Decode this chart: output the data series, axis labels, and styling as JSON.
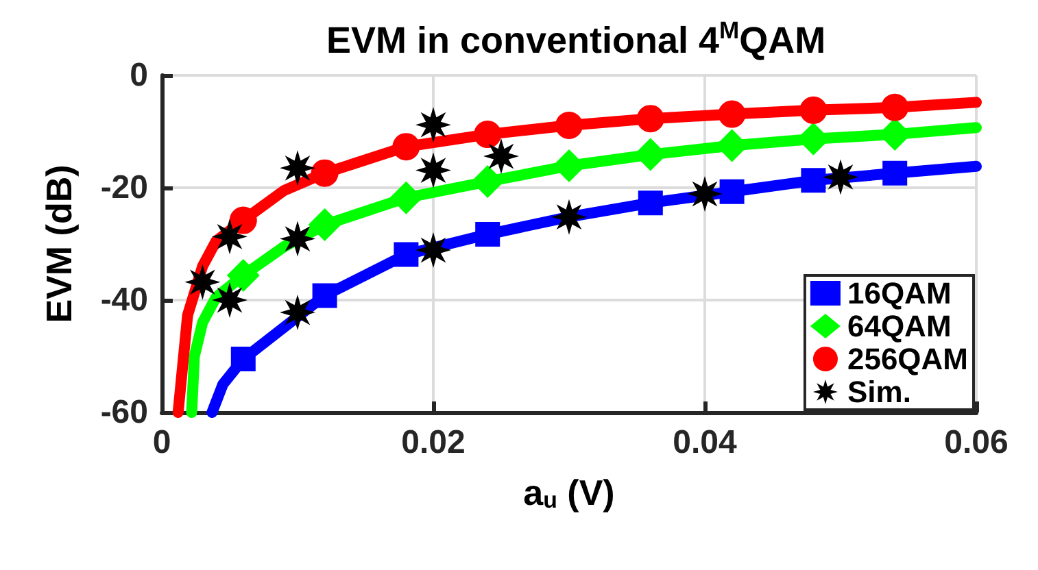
{
  "chart_data": {
    "type": "line",
    "title": "EVM in conventional 4$^{M}$QAM",
    "xlabel": "a$_{u}$ (V)",
    "ylabel": "EVM (dB)",
    "xlim": [
      0,
      0.06
    ],
    "xticks": [
      0,
      0.02,
      0.04,
      0.06
    ],
    "ylim": [
      -60,
      0
    ],
    "yticks": [
      -60,
      -40,
      -20,
      0
    ],
    "grid": true,
    "legend": "bottom right",
    "series": [
      {
        "type": "line",
        "marker": "none",
        "color": "#0000ff",
        "x": [
          0.0037,
          0.0045,
          0.006,
          0.012,
          0.018,
          0.024,
          0.03,
          0.036,
          0.042,
          0.048,
          0.054,
          0.06
        ],
        "values": [
          -60,
          -55,
          -50.5,
          -39.2,
          -31.9,
          -28.3,
          -25.2,
          -22.7,
          -20.7,
          -18.7,
          -17.4,
          -16.2
        ]
      },
      {
        "type": "line",
        "marker": "none",
        "color": "#00ff00",
        "x": [
          0.0022,
          0.0024,
          0.003,
          0.004,
          0.006,
          0.009,
          0.012,
          0.018,
          0.024,
          0.03,
          0.036,
          0.042,
          0.048,
          0.054,
          0.06
        ],
        "values": [
          -60,
          -50,
          -44,
          -39.5,
          -35.6,
          -30.5,
          -26.6,
          -21.8,
          -18.9,
          -16.1,
          -14.1,
          -12.5,
          -11.3,
          -10.5,
          -9.3
        ]
      },
      {
        "type": "line",
        "marker": "none",
        "color": "#ff0000",
        "x": [
          0.0012,
          0.0019,
          0.003,
          0.004,
          0.006,
          0.009,
          0.012,
          0.018,
          0.024,
          0.03,
          0.036,
          0.042,
          0.048,
          0.054,
          0.06
        ],
        "values": [
          -60,
          -42.7,
          -34,
          -29.5,
          -25.8,
          -20.5,
          -17.4,
          -12.7,
          -10.5,
          -8.9,
          -7.7,
          -6.9,
          -6.2,
          -5.7,
          -4.8
        ]
      },
      {
        "type": "scatter",
        "name": "16QAM",
        "marker": "square",
        "color": "#0000ff",
        "x": [
          0.006,
          0.012,
          0.018,
          0.024,
          0.036,
          0.042,
          0.048,
          0.054
        ],
        "values": [
          -50.5,
          -39.2,
          -31.9,
          -28.3,
          -22.7,
          -20.7,
          -18.7,
          -17.4
        ]
      },
      {
        "type": "scatter",
        "name": "64QAM",
        "marker": "diamond",
        "color": "#00ff00",
        "x": [
          0.006,
          0.012,
          0.018,
          0.024,
          0.03,
          0.036,
          0.042,
          0.048,
          0.054
        ],
        "values": [
          -35.6,
          -26.6,
          -21.8,
          -18.9,
          -16.1,
          -14.1,
          -12.5,
          -11.3,
          -10.5
        ]
      },
      {
        "type": "scatter",
        "name": "256QAM",
        "marker": "circle",
        "color": "#ff0000",
        "x": [
          0.006,
          0.012,
          0.018,
          0.024,
          0.03,
          0.036,
          0.042,
          0.048,
          0.054
        ],
        "values": [
          -25.8,
          -17.4,
          -12.7,
          -10.5,
          -8.9,
          -7.7,
          -6.9,
          -6.2,
          -5.7
        ]
      },
      {
        "type": "scatter",
        "name": "Sim.",
        "marker": "star",
        "color": "#000000",
        "x": [
          0.003,
          0.005,
          0.005,
          0.01,
          0.01,
          0.01,
          0.02,
          0.02,
          0.02,
          0.025,
          0.03,
          0.04,
          0.05
        ],
        "values": [
          -36.8,
          -28.7,
          -40,
          -16.5,
          -29.1,
          -42.2,
          -8.8,
          -16.9,
          -31.1,
          -14.4,
          -25.2,
          -21.1,
          -18.1
        ]
      }
    ]
  }
}
